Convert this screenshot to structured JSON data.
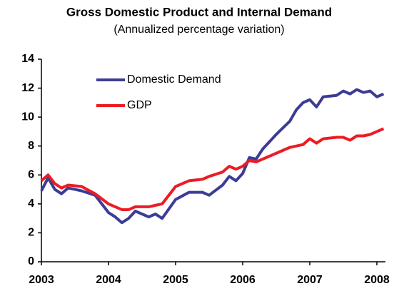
{
  "chart_data": {
    "type": "line",
    "title": "Gross Domestic Product and Internal Demand",
    "subtitle": "(Annualized percentage variation)",
    "x": [
      2003.0,
      2003.1,
      2003.2,
      2003.3,
      2003.4,
      2003.6,
      2003.8,
      2004.0,
      2004.1,
      2004.2,
      2004.3,
      2004.4,
      2004.6,
      2004.7,
      2004.8,
      2005.0,
      2005.2,
      2005.4,
      2005.5,
      2005.7,
      2005.8,
      2005.9,
      2006.0,
      2006.1,
      2006.2,
      2006.3,
      2006.5,
      2006.7,
      2006.8,
      2006.9,
      2007.0,
      2007.1,
      2007.2,
      2007.4,
      2007.5,
      2007.6,
      2007.7,
      2007.8,
      2007.9,
      2008.0,
      2008.1
    ],
    "series": [
      {
        "name": "Domestic Demand",
        "color": "#3c3c96",
        "values": [
          4.9,
          5.8,
          5.0,
          4.7,
          5.1,
          4.9,
          4.6,
          3.4,
          3.1,
          2.7,
          3.0,
          3.5,
          3.1,
          3.3,
          3.0,
          4.3,
          4.8,
          4.8,
          4.6,
          5.3,
          5.9,
          5.6,
          6.1,
          7.2,
          7.1,
          7.8,
          8.8,
          9.7,
          10.5,
          11.0,
          11.2,
          10.7,
          11.4,
          11.5,
          11.8,
          11.6,
          11.9,
          11.7,
          11.8,
          11.4,
          11.6
        ]
      },
      {
        "name": "GDP",
        "color": "#ec1c24",
        "values": [
          5.6,
          6.0,
          5.4,
          5.1,
          5.3,
          5.2,
          4.7,
          4.0,
          3.8,
          3.6,
          3.6,
          3.8,
          3.8,
          3.9,
          4.0,
          5.2,
          5.6,
          5.7,
          5.9,
          6.2,
          6.6,
          6.4,
          6.6,
          7.0,
          6.9,
          7.1,
          7.5,
          7.9,
          8.0,
          8.1,
          8.5,
          8.2,
          8.5,
          8.6,
          8.6,
          8.4,
          8.7,
          8.7,
          8.8,
          9.0,
          9.2
        ]
      }
    ],
    "xlim": [
      2003,
      2008.1
    ],
    "xticks": [
      2003,
      2004,
      2005,
      2006,
      2007,
      2008
    ],
    "ylim": [
      0,
      14
    ],
    "yticks": [
      0,
      2,
      4,
      6,
      8,
      10,
      12,
      14
    ],
    "legend": "upper left"
  }
}
